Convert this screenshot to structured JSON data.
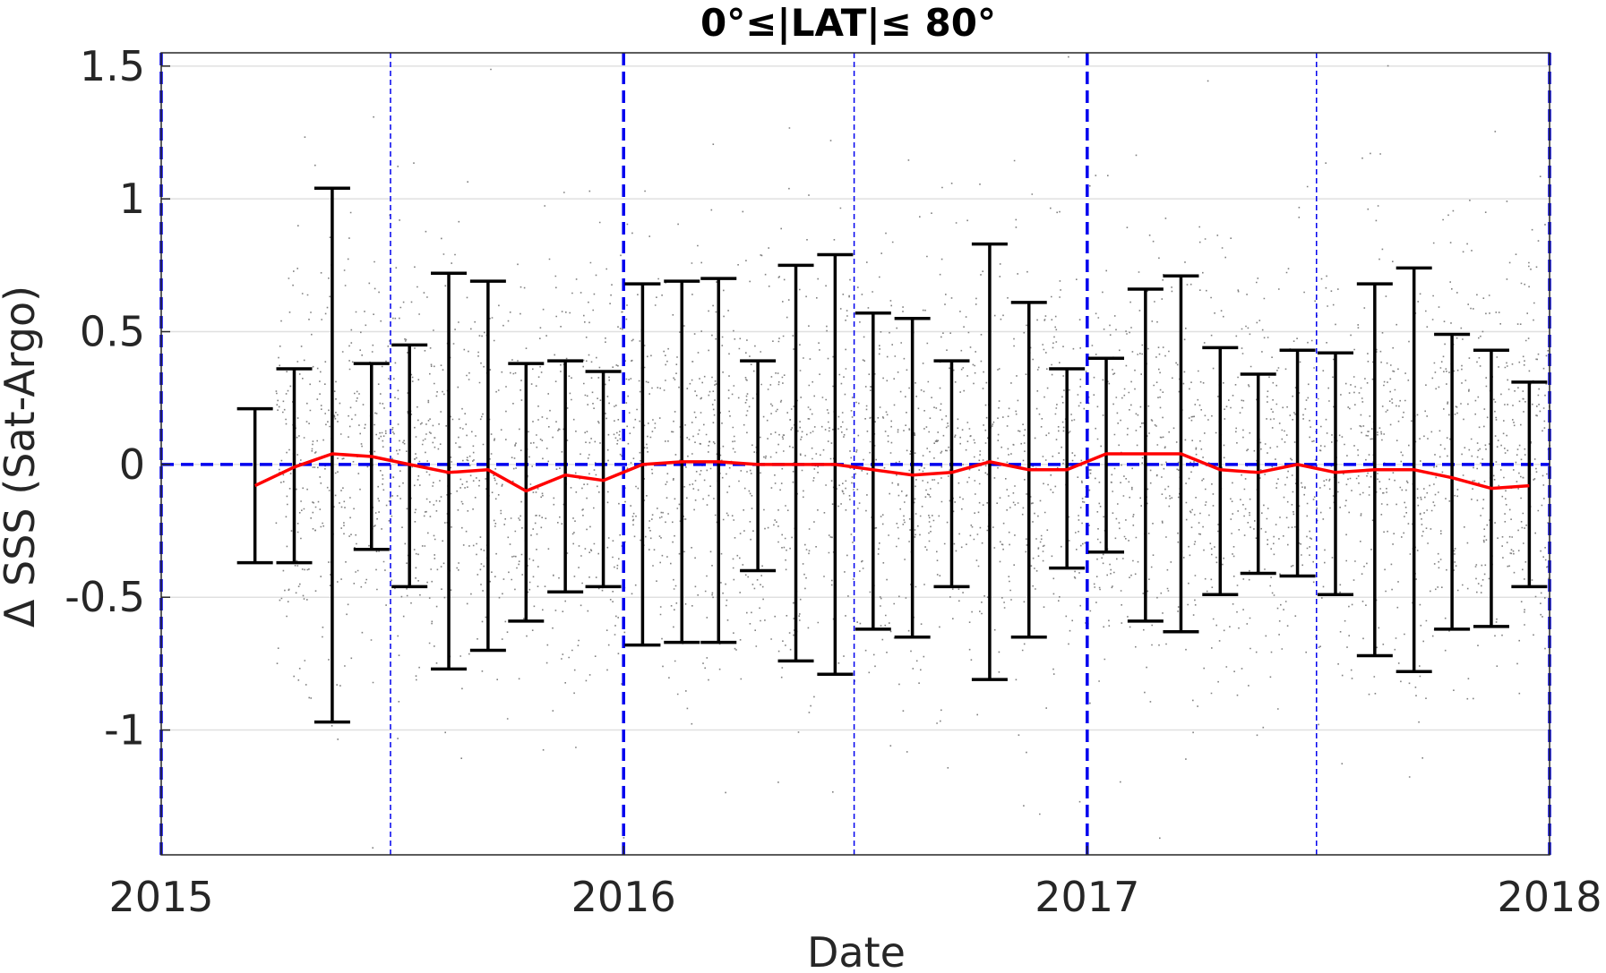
{
  "chart_data": {
    "type": "scatter",
    "title": "0°≤|LAT|≤ 80°",
    "xlabel": "Date",
    "ylabel": "Δ SSS (Sat-Argo)",
    "xlim": [
      "2015-01-01",
      "2018-01-01"
    ],
    "ylim": [
      -1.47,
      1.55
    ],
    "x_ticks": [
      {
        "value": "2015-01-01",
        "label": "2015"
      },
      {
        "value": "2016-01-01",
        "label": "2016"
      },
      {
        "value": "2017-01-01",
        "label": "2017"
      },
      {
        "value": "2018-01-01",
        "label": "2018"
      }
    ],
    "y_ticks": [
      {
        "value": 1.5,
        "label": "1.5"
      },
      {
        "value": 1,
        "label": "1"
      },
      {
        "value": 0.5,
        "label": "0.5"
      },
      {
        "value": 0,
        "label": "0"
      },
      {
        "value": -0.5,
        "label": "-0.5"
      },
      {
        "value": -1,
        "label": "-1"
      }
    ],
    "grid": true,
    "colors": {
      "scatter": "#808080",
      "mean_line": "#ff0000",
      "errorbar": "#000000",
      "reference": "#0000ee",
      "grid": "#e0e0e0",
      "axis": "#262626"
    },
    "reference_lines": {
      "zero_line": 0,
      "year_boundaries": [
        "2015-01-01",
        "2016-01-01",
        "2017-01-01",
        "2018-01-01"
      ],
      "mid_year": [
        "2015-07-01",
        "2016-07-01",
        "2017-07-01"
      ]
    },
    "scatter_summary": {
      "start": "2015-04-01",
      "end": "2018-01-01",
      "center": 0,
      "spread_sd": 0.38
    },
    "series": [
      {
        "type": "errorbar",
        "x": [
          "2015-03-16",
          "2015-04-16",
          "2015-05-16",
          "2015-06-16",
          "2015-07-16",
          "2015-08-16",
          "2015-09-16",
          "2015-10-16",
          "2015-11-16",
          "2015-12-16",
          "2016-01-16",
          "2016-02-16",
          "2016-03-16",
          "2016-04-16",
          "2016-05-16",
          "2016-06-16",
          "2016-07-16",
          "2016-08-16",
          "2016-09-16",
          "2016-10-16",
          "2016-11-16",
          "2016-12-16",
          "2017-01-16",
          "2017-02-16",
          "2017-03-16",
          "2017-04-16",
          "2017-05-16",
          "2017-06-16",
          "2017-07-16",
          "2017-08-16",
          "2017-09-16",
          "2017-10-16",
          "2017-11-16",
          "2017-12-16"
        ],
        "mean": [
          -0.08,
          -0.01,
          0.04,
          0.03,
          0.0,
          -0.03,
          -0.02,
          -0.1,
          -0.04,
          -0.06,
          0.0,
          0.01,
          0.01,
          0.0,
          0.0,
          0.0,
          -0.02,
          -0.04,
          -0.03,
          0.01,
          -0.02,
          -0.02,
          0.04,
          0.04,
          0.04,
          -0.02,
          -0.03,
          0.0,
          -0.03,
          -0.02,
          -0.02,
          -0.05,
          -0.09,
          -0.08
        ],
        "upper": [
          0.21,
          0.36,
          1.04,
          0.38,
          0.45,
          0.72,
          0.69,
          0.38,
          0.39,
          0.35,
          0.68,
          0.69,
          0.7,
          0.39,
          0.75,
          0.79,
          0.57,
          0.55,
          0.39,
          0.83,
          0.61,
          0.36,
          0.4,
          0.66,
          0.71,
          0.44,
          0.34,
          0.43,
          0.42,
          0.68,
          0.74,
          0.49,
          0.43,
          0.31
        ],
        "lower": [
          -0.37,
          -0.37,
          -0.97,
          -0.32,
          -0.46,
          -0.77,
          -0.7,
          -0.59,
          -0.48,
          -0.46,
          -0.68,
          -0.67,
          -0.67,
          -0.4,
          -0.74,
          -0.79,
          -0.62,
          -0.65,
          -0.46,
          -0.81,
          -0.65,
          -0.39,
          -0.33,
          -0.59,
          -0.63,
          -0.49,
          -0.41,
          -0.42,
          -0.49,
          -0.72,
          -0.78,
          -0.62,
          -0.61,
          -0.46
        ]
      }
    ]
  }
}
